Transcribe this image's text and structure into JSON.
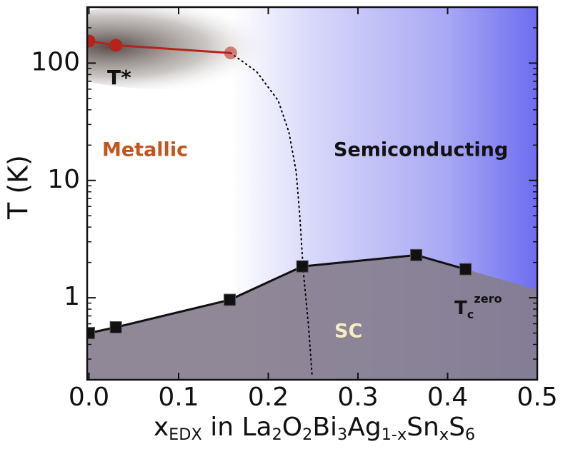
{
  "chart_data": {
    "type": "phase-diagram",
    "xlabel": [
      {
        "text": "x"
      },
      {
        "text": "EDX",
        "sub": true
      },
      {
        "text": " in La"
      },
      {
        "text": "2",
        "sub": true
      },
      {
        "text": "O"
      },
      {
        "text": "2",
        "sub": true
      },
      {
        "text": "Bi"
      },
      {
        "text": "3",
        "sub": true
      },
      {
        "text": "Ag"
      },
      {
        "text": "1-x",
        "sub": true
      },
      {
        "text": "Sn"
      },
      {
        "text": "x",
        "sub": true
      },
      {
        "text": "S"
      },
      {
        "text": "6",
        "sub": true
      }
    ],
    "ylabel": "T (K)",
    "xlim": [
      -0.002,
      0.5
    ],
    "ylim": [
      0.2,
      300
    ],
    "log_y": true,
    "xticks": [
      {
        "value": 0,
        "label": "0.0"
      },
      0.1,
      0.2,
      0.3,
      0.4,
      0.5
    ],
    "yticks": [
      1,
      10,
      100
    ],
    "series": [
      {
        "x": [
          0.0,
          0.03,
          0.158
        ],
        "values": [
          154,
          142,
          122
        ],
        "color": "#b5231c",
        "marker": "circle"
      },
      {
        "x": [
          0.0,
          0.03,
          0.157,
          0.238,
          0.365,
          0.42
        ],
        "values": [
          0.5,
          0.56,
          0.96,
          1.85,
          2.31,
          1.75
        ],
        "color": "#111111",
        "marker": "square"
      }
    ],
    "crossover": {
      "x": [
        0.158,
        0.187,
        0.211,
        0.223,
        0.231,
        0.235,
        0.239,
        0.245,
        0.249
      ],
      "values": [
        122,
        84.6,
        48,
        25.8,
        12,
        5.2,
        1.7,
        0.56,
        0.21
      ],
      "color": "#000000"
    },
    "annotations": {
      "tstar": "T*",
      "metallic": "Metallic",
      "semiconducting": "Semiconducting",
      "sc": "SC",
      "tc": [
        {
          "text": "T"
        },
        {
          "text": "c",
          "sub": true
        },
        {
          "text": "zero",
          "sup": true
        }
      ]
    }
  }
}
